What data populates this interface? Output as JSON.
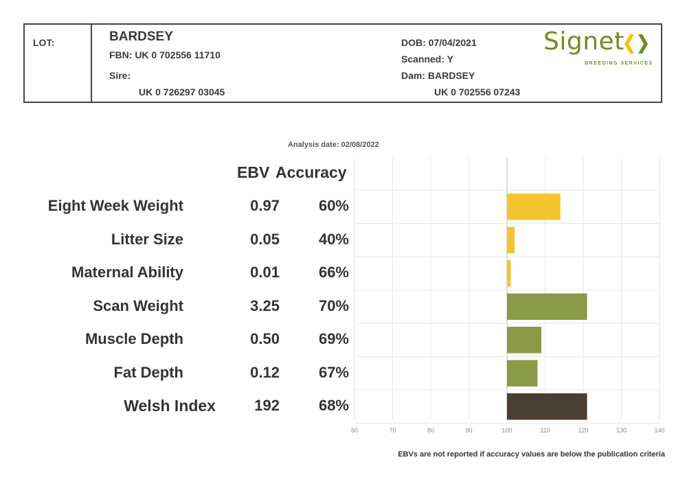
{
  "header": {
    "lot_label": "LOT:",
    "name": "BARDSEY",
    "fbn": "FBN: UK 0 702556 11710",
    "sire_label": "Sire:",
    "sire_id": "UK 0 726297 03045",
    "dob": "DOB: 07/04/2021",
    "scanned": "Scanned: Y",
    "dam": "Dam: BARDSEY",
    "dam_id": "UK 0 702556 07243"
  },
  "logo": {
    "word": "Signet",
    "subtitle": "BREEDING SERVICES",
    "colors": {
      "green": "#6b8e23",
      "yellow": "#f2c200"
    }
  },
  "analysis_date": "Analysis date: 02/08/2022",
  "columns": {
    "ebv": "EBV",
    "accuracy": "Accuracy"
  },
  "traits": [
    {
      "label": "Eight Week Weight",
      "ebv": "0.97",
      "accuracy": "60%"
    },
    {
      "label": "Litter Size",
      "ebv": "0.05",
      "accuracy": "40%"
    },
    {
      "label": "Maternal Ability",
      "ebv": "0.01",
      "accuracy": "66%"
    },
    {
      "label": "Scan Weight",
      "ebv": "3.25",
      "accuracy": "70%"
    },
    {
      "label": "Muscle Depth",
      "ebv": "0.50",
      "accuracy": "69%"
    },
    {
      "label": "Fat Depth",
      "ebv": "0.12",
      "accuracy": "67%"
    },
    {
      "label": "Welsh Index",
      "ebv": "192",
      "accuracy": "68%"
    }
  ],
  "chart_data": {
    "type": "bar",
    "orientation": "horizontal",
    "baseline": 100,
    "xlim": [
      60,
      140
    ],
    "x_ticks": [
      60,
      70,
      80,
      90,
      100,
      110,
      120,
      130,
      140
    ],
    "grid": true,
    "categories": [
      "Eight Week Weight",
      "Litter Size",
      "Maternal Ability",
      "Scan Weight",
      "Muscle Depth",
      "Fat Depth",
      "Welsh Index"
    ],
    "values": [
      114,
      102,
      101,
      121,
      109,
      108,
      121
    ],
    "colors": [
      "#f4c430",
      "#f4c430",
      "#f4c430",
      "#8a9a45",
      "#8a9a45",
      "#8a9a45",
      "#4a3f35"
    ]
  },
  "footnote": "EBVs are not reported if accuracy values are below the publication criteria"
}
